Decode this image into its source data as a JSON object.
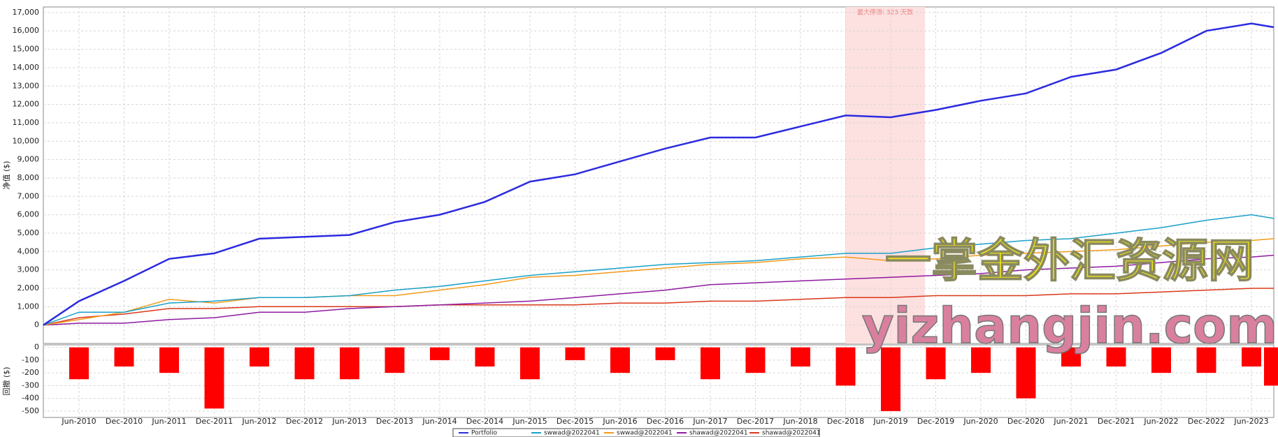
{
  "chart_data": {
    "type": "line",
    "ylabel": "净值 ($)",
    "x": [
      null,
      "Jun-2010",
      "Dec-2010",
      "Jun-2011",
      "Dec-2011",
      "Jun-2012",
      "Dec-2012",
      "Jun-2013",
      "Dec-2013",
      "Jun-2014",
      "Dec-2014",
      "Jun-2015",
      "Dec-2015",
      "Jun-2016",
      "Dec-2016",
      "Jun-2017",
      "Dec-2017",
      "Jun-2018",
      "Dec-2018",
      "Jun-2019",
      "Dec-2019",
      "Jun-2020",
      "Dec-2020",
      "Jun-2021",
      "Dec-2021",
      "Jun-2022",
      "Dec-2022",
      "Jun-2023",
      null
    ],
    "ylim": [
      -1000,
      17300
    ],
    "yticks": [
      0,
      {
        "value": 1000,
        "label": "1,000"
      },
      {
        "value": 2000,
        "label": "2,000"
      },
      {
        "value": 3000,
        "label": "3,000"
      },
      {
        "value": 4000,
        "label": "4,000"
      },
      {
        "value": 5000,
        "label": "5,000"
      },
      {
        "value": 6000,
        "label": "6,000"
      },
      {
        "value": 7000,
        "label": "7,000"
      },
      {
        "value": 8000,
        "label": "8,000"
      },
      {
        "value": 9000,
        "label": "9,000"
      },
      {
        "value": 10000,
        "label": "10,000"
      },
      {
        "value": 11000,
        "label": "11,000"
      },
      {
        "value": 12000,
        "label": "12,000"
      },
      {
        "value": 13000,
        "label": "13,000"
      },
      {
        "value": 14000,
        "label": "14,000"
      },
      {
        "value": 15000,
        "label": "15,000"
      },
      {
        "value": 16000,
        "label": "16,000"
      },
      {
        "value": 17000,
        "label": "17,000"
      }
    ],
    "grid": true,
    "annotation": "最大停滞: 323 天数",
    "watermark": [
      "一掌金外汇资源网",
      "yizhangjin.com"
    ],
    "series": [
      {
        "name": "Portfolio",
        "color": "#2b2be0",
        "values": [
          0,
          1300,
          2400,
          3600,
          3900,
          4700,
          4800,
          4900,
          5600,
          6000,
          6700,
          7800,
          8200,
          8900,
          9600,
          10200,
          10200,
          10800,
          11400,
          11300,
          11700,
          12200,
          12600,
          13500,
          13900,
          14800,
          16000,
          16400,
          16200
        ]
      },
      {
        "name": "swwad@2022041",
        "color": "#1aa0c8",
        "values": [
          0,
          700,
          700,
          1200,
          1300,
          1500,
          1500,
          1600,
          1900,
          2100,
          2400,
          2700,
          2900,
          3100,
          3300,
          3400,
          3500,
          3700,
          3900,
          3900,
          4200,
          4400,
          4600,
          4700,
          5000,
          5300,
          5700,
          6000,
          5800
        ]
      },
      {
        "name": "swwad@2022041",
        "color": "#f29a1a",
        "values": [
          0,
          300,
          700,
          1400,
          1200,
          1500,
          1500,
          1600,
          1600,
          1900,
          2200,
          2600,
          2700,
          2900,
          3100,
          3300,
          3400,
          3600,
          3700,
          3500,
          3600,
          3800,
          3900,
          4000,
          4100,
          4300,
          4500,
          4600,
          4700
        ]
      },
      {
        "name": "shawad@2022041",
        "color": "#8e1aa0",
        "values": [
          0,
          100,
          100,
          300,
          400,
          700,
          700,
          900,
          1000,
          1100,
          1200,
          1300,
          1500,
          1700,
          1900,
          2200,
          2300,
          2400,
          2500,
          2600,
          2700,
          2800,
          3000,
          3100,
          3200,
          3400,
          3600,
          3700,
          3800
        ]
      },
      {
        "name": "shawad@2022041",
        "color": "#d9381a",
        "values": [
          0,
          400,
          600,
          900,
          900,
          1000,
          1000,
          1000,
          1000,
          1100,
          1100,
          1100,
          1100,
          1200,
          1200,
          1300,
          1300,
          1400,
          1500,
          1500,
          1600,
          1600,
          1600,
          1700,
          1700,
          1800,
          1900,
          2000,
          2000
        ]
      }
    ],
    "drawdown": {
      "ylabel": "回撤 ($)",
      "color": "#ff0000",
      "ylim": [
        -550,
        20
      ],
      "yticks": [
        0,
        -100,
        -200,
        -300,
        -400,
        -500
      ],
      "values": [
        0,
        -250,
        -150,
        -200,
        -480,
        -150,
        -250,
        -250,
        -200,
        -100,
        -150,
        -250,
        -100,
        -200,
        -100,
        -250,
        -200,
        -150,
        -300,
        -500,
        -250,
        -200,
        -400,
        -150,
        -150,
        -200,
        -200,
        -150,
        -300
      ]
    }
  }
}
